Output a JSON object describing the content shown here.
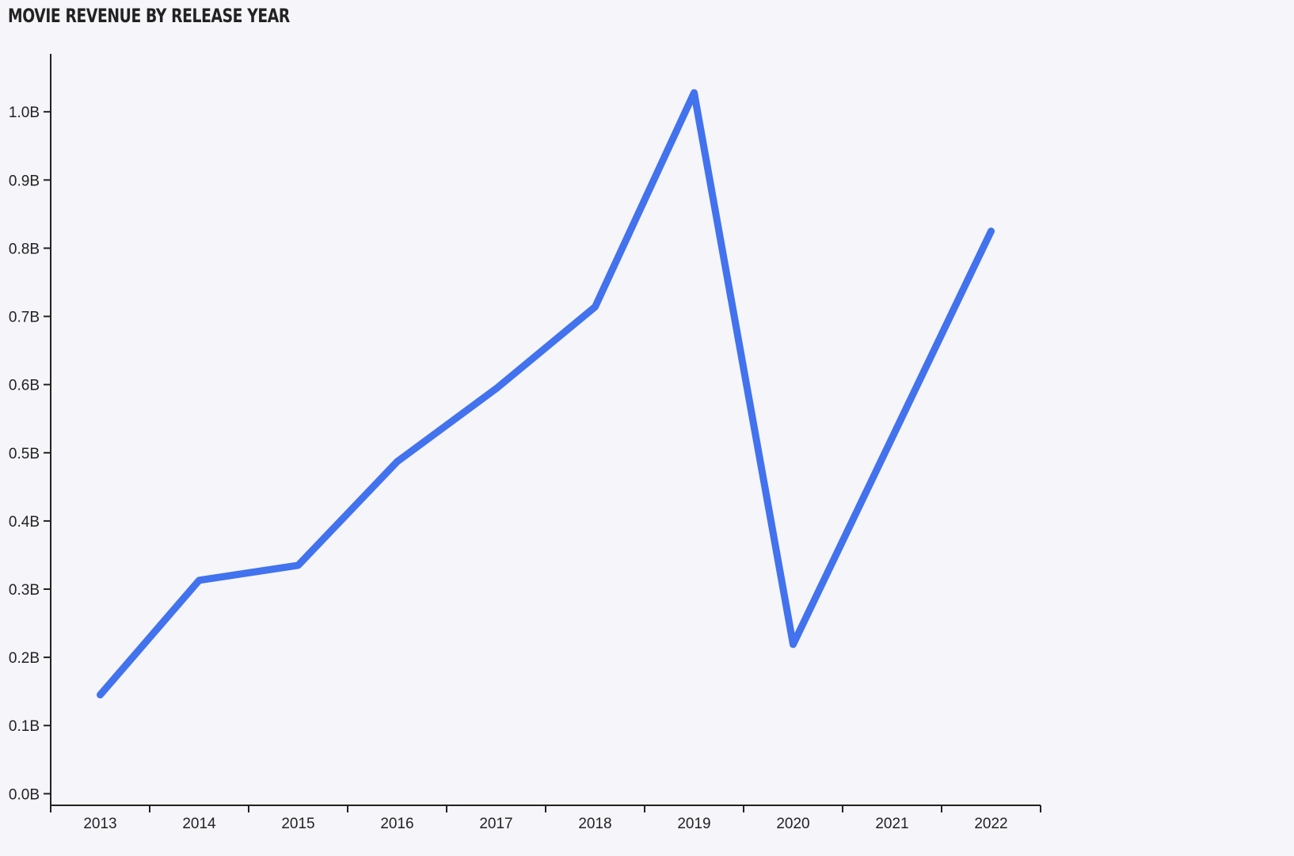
{
  "chart_data": {
    "type": "line",
    "title": "MOVIE REVENUE BY RELEASE YEAR",
    "xlabel": "",
    "ylabel": "",
    "categories": [
      "2013",
      "2014",
      "2015",
      "2016",
      "2017",
      "2018",
      "2019",
      "2020",
      "2021",
      "2022"
    ],
    "series": [
      {
        "values": [
          0.145,
          0.313,
          0.335,
          0.487,
          0.594,
          0.714,
          1.028,
          0.219,
          0.522,
          0.825
        ],
        "color": "#4272ee"
      }
    ],
    "yticks": [
      {
        "value": 0.0,
        "label": "0.0B"
      },
      {
        "value": 0.1,
        "label": "0.1B"
      },
      {
        "value": 0.2,
        "label": "0.2B"
      },
      {
        "value": 0.3,
        "label": "0.3B"
      },
      {
        "value": 0.4,
        "label": "0.4B"
      },
      {
        "value": 0.5,
        "label": "0.5B"
      },
      {
        "value": 0.6,
        "label": "0.6B"
      },
      {
        "value": 0.7,
        "label": "0.7B"
      },
      {
        "value": 0.8,
        "label": "0.8B"
      },
      {
        "value": 0.9,
        "label": "0.9B"
      },
      {
        "value": 1.0,
        "label": "1.0B"
      }
    ],
    "ylim": [
      -0.017,
      1.085
    ],
    "grid": false,
    "legend": "none"
  }
}
